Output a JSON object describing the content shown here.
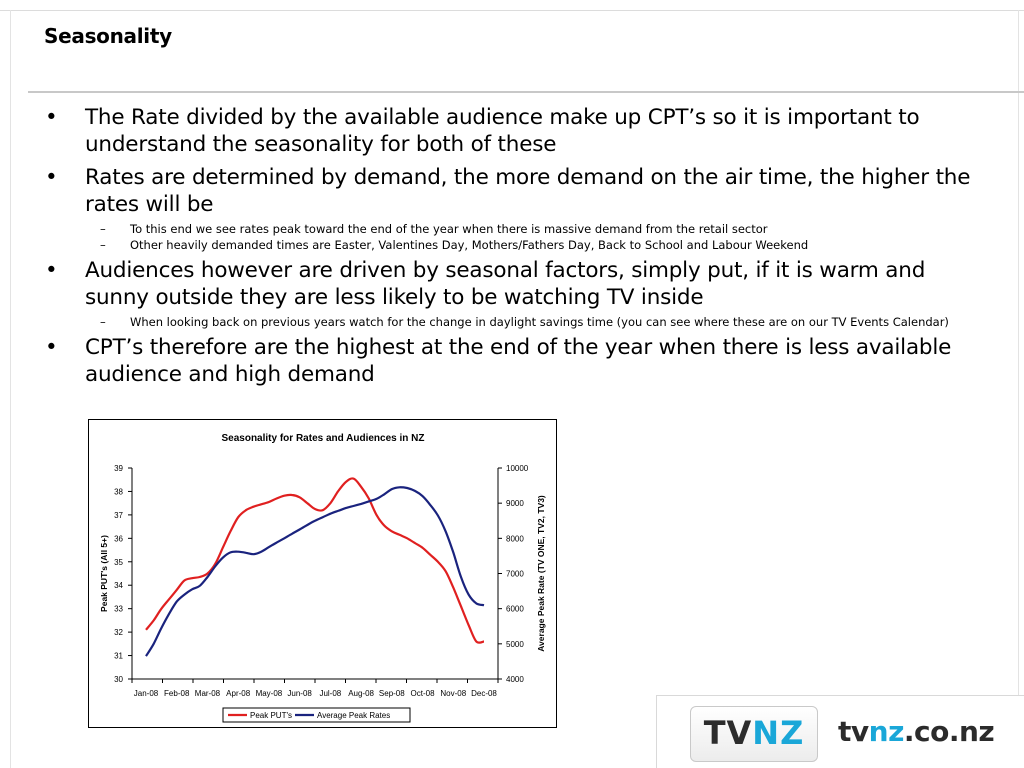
{
  "slide": {
    "title": "Seasonality",
    "bullets": [
      {
        "text": "The Rate divided by the available audience make up CPT’s so it is important to understand the seasonality for both of these",
        "subs": []
      },
      {
        "text": "Rates are determined by demand, the more demand on the air time, the higher the rates will be",
        "subs": [
          "To this end we see rates peak toward the end of the year when there is massive demand from the retail sector",
          "Other heavily demanded times are Easter, Valentines Day, Mothers/Fathers Day, Back to School and Labour Weekend"
        ]
      },
      {
        "text": "Audiences however are driven by seasonal factors, simply put, if it is warm and sunny outside they are less likely to be watching TV inside",
        "subs": [
          "When looking back on previous years watch for the change in daylight savings time (you can see where these are on our TV Events Calendar)"
        ]
      },
      {
        "text": "CPT’s therefore are the highest at the end of the year when there is less available audience and high demand",
        "subs": []
      }
    ],
    "bullet_glyph": "•",
    "dash_glyph": "–"
  },
  "logo": {
    "badge_tv": "TV",
    "badge_nz": "NZ",
    "url_tv": "tv",
    "url_nz": "nz",
    "url_rest": ".co.nz",
    "brand_color": "#1aa7d8"
  },
  "chart_data": {
    "type": "line",
    "title": "Seasonality for Rates and Audiences in NZ",
    "ylabel": "Peak PUT's (All 5+)",
    "y2label": "Average Peak Rate (TV ONE, TV2, TV3)",
    "categories": [
      "Jan-08",
      "Feb-08",
      "Mar-08",
      "Apr-08",
      "May-08",
      "Jun-08",
      "Jul-08",
      "Aug-08",
      "Sep-08",
      "Oct-08",
      "Nov-08",
      "Dec-08"
    ],
    "ylim": [
      30,
      39
    ],
    "yticks": [
      "30",
      "31",
      "32",
      "33",
      "34",
      "35",
      "36",
      "37",
      "38",
      "39"
    ],
    "y2lim": [
      4000,
      10000
    ],
    "y2ticks": [
      "4000",
      "5000",
      "6000",
      "7000",
      "8000",
      "9000",
      "10000"
    ],
    "legend_position": "bottom",
    "grid": false,
    "series": [
      {
        "name": "Peak PUT's",
        "axis": "left",
        "color": "#e02020",
        "x": [
          0,
          0.25,
          0.5,
          0.75,
          1,
          1.25,
          1.5,
          1.75,
          2,
          2.25,
          2.5,
          2.75,
          3,
          3.25,
          3.5,
          3.75,
          4,
          4.25,
          4.5,
          4.75,
          5,
          5.25,
          5.5,
          5.75,
          6,
          6.25,
          6.5,
          6.75,
          7,
          7.25,
          7.5,
          7.75,
          8,
          8.25,
          8.5,
          8.75,
          9,
          9.25,
          9.5,
          9.75,
          10,
          10.25,
          10.5,
          10.75,
          11
        ],
        "values": [
          32.1,
          32.5,
          33.0,
          33.4,
          33.8,
          34.2,
          34.3,
          34.35,
          34.5,
          34.9,
          35.6,
          36.3,
          36.9,
          37.2,
          37.35,
          37.45,
          37.55,
          37.7,
          37.82,
          37.85,
          37.75,
          37.5,
          37.25,
          37.2,
          37.5,
          38.0,
          38.4,
          38.55,
          38.2,
          37.7,
          37.0,
          36.55,
          36.3,
          36.15,
          36.0,
          35.8,
          35.6,
          35.3,
          35.0,
          34.6,
          33.9,
          33.1,
          32.3,
          31.6,
          31.6
        ]
      },
      {
        "name": "Average Peak Rates",
        "axis": "right",
        "color": "#1a237e",
        "x": [
          0,
          0.25,
          0.5,
          0.75,
          1,
          1.25,
          1.5,
          1.75,
          2,
          2.25,
          2.5,
          2.75,
          3,
          3.25,
          3.5,
          3.75,
          4,
          4.25,
          4.5,
          4.75,
          5,
          5.25,
          5.5,
          5.75,
          6,
          6.25,
          6.5,
          6.75,
          7,
          7.25,
          7.5,
          7.75,
          8,
          8.25,
          8.5,
          8.75,
          9,
          9.25,
          9.5,
          9.75,
          10,
          10.25,
          10.5,
          10.75,
          11
        ],
        "values": [
          4650,
          5000,
          5450,
          5850,
          6200,
          6400,
          6550,
          6650,
          6900,
          7200,
          7450,
          7600,
          7620,
          7590,
          7550,
          7620,
          7750,
          7880,
          8000,
          8130,
          8250,
          8380,
          8500,
          8600,
          8700,
          8780,
          8860,
          8920,
          8980,
          9050,
          9120,
          9250,
          9400,
          9450,
          9430,
          9350,
          9200,
          8950,
          8650,
          8200,
          7600,
          6900,
          6400,
          6150,
          6100
        ]
      }
    ]
  }
}
